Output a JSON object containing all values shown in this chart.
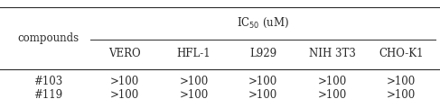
{
  "title": "IC$_{50}$ (uM)",
  "col_headers": [
    "VERO",
    "HFL-1",
    "L929",
    "NIH 3T3",
    "CHO-K1"
  ],
  "row_headers": [
    "#103",
    "#119"
  ],
  "values": [
    [
      ">100",
      ">100",
      ">100",
      ">100",
      ">100"
    ],
    [
      ">100",
      ">100",
      ">100",
      ">100",
      ">100"
    ]
  ],
  "compounds_label": "compounds",
  "bg_color": "#ffffff",
  "text_color": "#2b2b2b",
  "line_color": "#2b2b2b",
  "font_size": 8.5,
  "fig_width": 4.87,
  "fig_height": 1.1,
  "dpi": 100
}
